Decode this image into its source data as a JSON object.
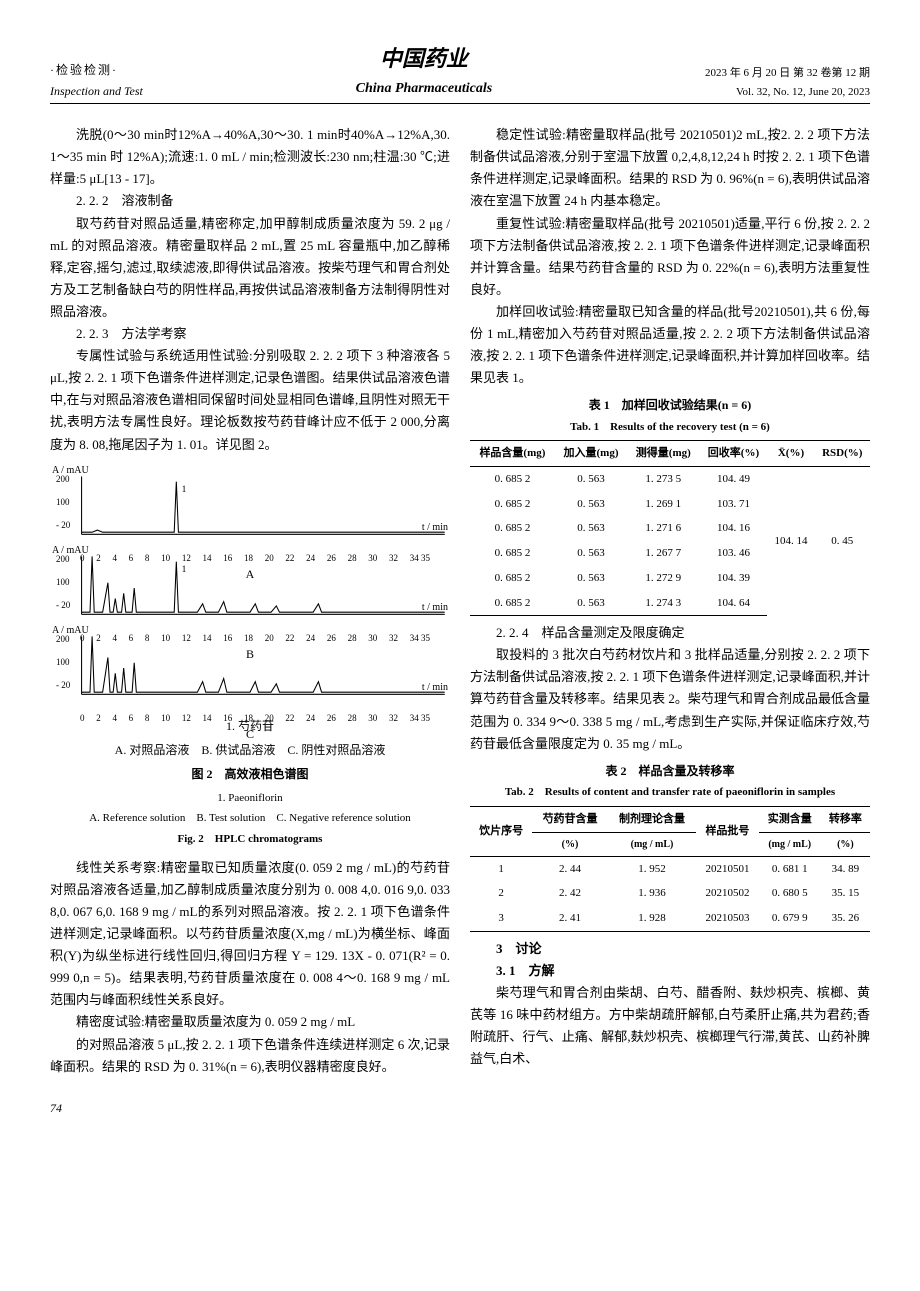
{
  "header": {
    "left_cn": "·检验检测·",
    "left_en": "Inspection and Test",
    "center_cn": "中国药业",
    "center_en": "China Pharmaceuticals",
    "right_line1": "2023 年 6 月 20 日  第 32 卷第 12 期",
    "right_line2": "Vol. 32, No. 12, June 20, 2023"
  },
  "body": {
    "p1": "洗脱(0～30 min时12%A→40%A,30～30. 1 min时40%A→12%A,30. 1～35 min 时 12%A);流速:1. 0 mL / min;检测波长:230 nm;柱温:30 ℃;进样量:5 μL[13 - 17]。",
    "s222": "2. 2. 2　溶液制备",
    "p2": "取芍药苷对照品适量,精密称定,加甲醇制成质量浓度为 59. 2 μg / mL 的对照品溶液。精密量取样品 2 mL,置 25 mL 容量瓶中,加乙醇稀释,定容,摇匀,滤过,取续滤液,即得供试品溶液。按柴芍理气和胃合剂处方及工艺制备缺白芍的阴性样品,再按供试品溶液制备方法制得阴性对照品溶液。",
    "s223": "2. 2. 3　方法学考察",
    "p3": "专属性试验与系统适用性试验:分别吸取 2. 2. 2 项下 3 种溶液各 5 μL,按 2. 2. 1 项下色谱条件进样测定,记录色谱图。结果供试品溶液色谱中,在与对照品溶液色谱相同保留时间处显相同色谱峰,且阴性对照无干扰,表明方法专属性良好。理论板数按芍药苷峰计应不低于 2 000,分离度为 8. 08,拖尾因子为 1. 01。详见图 2。",
    "p4": "线性关系考察:精密量取已知质量浓度(0. 059 2 mg / mL)的芍药苷对照品溶液各适量,加乙醇制成质量浓度分别为 0. 008 4,0. 016 9,0. 033 8,0. 067 6,0. 168 9 mg / mL的系列对照品溶液。按 2. 2. 1 项下色谱条件进样测定,记录峰面积。以芍药苷质量浓度(X,mg / mL)为横坐标、峰面积(Y)为纵坐标进行线性回归,得回归方程 Y = 129. 13X - 0. 071(R² = 0. 999 0,n = 5)。结果表明,芍药苷质量浓度在 0. 008 4～0. 168 9 mg / mL 范围内与峰面积线性关系良好。",
    "p5": "精密度试验:精密量取质量浓度为 0. 059 2 mg / mL",
    "p6": "的对照品溶液 5 μL,按 2. 2. 1 项下色谱条件连续进样测定 6 次,记录峰面积。结果的 RSD 为 0. 31%(n = 6),表明仪器精密度良好。",
    "p7": "稳定性试验:精密量取样品(批号 20210501)2 mL,按2. 2. 2 项下方法制备供试品溶液,分别于室温下放置 0,2,4,8,12,24 h 时按 2. 2. 1 项下色谱条件进样测定,记录峰面积。结果的 RSD 为 0. 96%(n = 6),表明供试品溶液在室温下放置 24 h 内基本稳定。",
    "p8": "重复性试验:精密量取样品(批号 20210501)适量,平行 6 份,按 2. 2. 2 项下方法制备供试品溶液,按 2. 2. 1 项下色谱条件进样测定,记录峰面积并计算含量。结果芍药苷含量的 RSD 为 0. 22%(n = 6),表明方法重复性良好。",
    "p9": "加样回收试验:精密量取已知含量的样品(批号20210501),共 6 份,每份 1 mL,精密加入芍药苷对照品适量,按 2. 2. 2 项下方法制备供试品溶液,按 2. 2. 1 项下色谱条件进样测定,记录峰面积,并计算加样回收率。结果见表 1。",
    "s224": "2. 2. 4　样品含量测定及限度确定",
    "p10": "取投料的 3 批次白芍药材饮片和 3 批样品适量,分别按 2. 2. 2 项下方法制备供试品溶液,按 2. 2. 1 项下色谱条件进样测定,记录峰面积,并计算芍药苷含量及转移率。结果见表 2。柴芍理气和胃合剂成品最低含量范围为 0. 334 9～0. 338 5 mg / mL,考虑到生产实际,并保证临床疗效,芍药苷最低含量限度定为 0. 35 mg / mL。",
    "s3": "3　讨论",
    "s31": "3. 1　方解",
    "p11": "柴芍理气和胃合剂由柴胡、白芍、醋香附、麸炒枳壳、槟榔、黄芪等 16 味中药材组方。方中柴胡疏肝解郁,白芍柔肝止痛,共为君药;香附疏肝、行气、止痛、解郁,麸炒枳壳、槟榔理气行滞,黄芪、山药补脾益气,白术、"
  },
  "figure2": {
    "ylabel": "A / mAU",
    "xlabel": "t / min",
    "y_ticks": [
      "200",
      "100",
      "- 20"
    ],
    "x_ticks": [
      "0",
      "2",
      "4",
      "6",
      "8",
      "10",
      "12",
      "14",
      "16",
      "18",
      "20",
      "22",
      "24",
      "26",
      "28",
      "30",
      "32",
      "34 35"
    ],
    "panels": [
      "A",
      "B",
      "C"
    ],
    "peak_label": "1",
    "legend_peak": "1. 芍药苷",
    "legend_cn": "A. 对照品溶液　B. 供试品溶液　C. 阴性对照品溶液",
    "title_cn": "图 2　高效液相色谱图",
    "legend_peak_en": "1. Paeoniflorin",
    "legend_en": "A. Reference solution　B. Test solution　C. Negative reference solution",
    "title_en": "Fig. 2　HPLC chromatograms",
    "stroke_color": "#000000",
    "stroke_width": 1
  },
  "table1": {
    "title_cn": "表 1　加样回收试验结果(n = 6)",
    "title_en": "Tab. 1　Results of the recovery test (n = 6)",
    "headers": [
      "样品含量(mg)",
      "加入量(mg)",
      "测得量(mg)",
      "回收率(%)",
      "X̄(%)",
      "RSD(%)"
    ],
    "rows": [
      [
        "0. 685 2",
        "0. 563",
        "1. 273 5",
        "104. 49",
        "",
        ""
      ],
      [
        "0. 685 2",
        "0. 563",
        "1. 269 1",
        "103. 71",
        "",
        ""
      ],
      [
        "0. 685 2",
        "0. 563",
        "1. 271 6",
        "104. 16",
        "104. 14",
        "0. 45"
      ],
      [
        "0. 685 2",
        "0. 563",
        "1. 267 7",
        "103. 46",
        "",
        ""
      ],
      [
        "0. 685 2",
        "0. 563",
        "1. 272 9",
        "104. 39",
        "",
        ""
      ],
      [
        "0. 685 2",
        "0. 563",
        "1. 274 3",
        "104. 64",
        "",
        ""
      ]
    ]
  },
  "table2": {
    "title_cn": "表 2　样品含量及转移率",
    "title_en": "Tab. 2　Results of content and transfer rate of paeoniflorin in samples",
    "headers_row1": [
      "饮片序号",
      "芍药苷含量",
      "制剂理论含量",
      "样品批号",
      "实测含量",
      "转移率"
    ],
    "headers_row2": [
      "",
      "(%)",
      "(mg / mL)",
      "",
      "(mg / mL)",
      "(%)"
    ],
    "rows": [
      [
        "1",
        "2. 44",
        "1. 952",
        "20210501",
        "0. 681 1",
        "34. 89"
      ],
      [
        "2",
        "2. 42",
        "1. 936",
        "20210502",
        "0. 680 5",
        "35. 15"
      ],
      [
        "3",
        "2. 41",
        "1. 928",
        "20210503",
        "0. 679 9",
        "35. 26"
      ]
    ]
  },
  "page_num": "74"
}
